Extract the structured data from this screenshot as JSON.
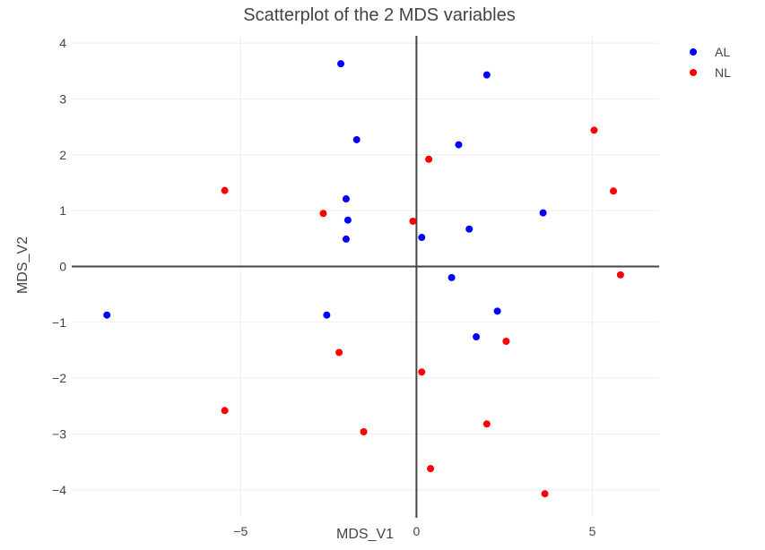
{
  "chart_data": {
    "type": "scatter",
    "title": "Scatterplot of the 2 MDS variables",
    "xlabel": "MDS_V1",
    "ylabel": "MDS_V2",
    "xlim": [
      -9.8,
      6.9
    ],
    "ylim": [
      -4.5,
      4.13
    ],
    "xticks": [
      -5,
      0,
      5
    ],
    "yticks": [
      -4,
      -3,
      -2,
      -1,
      0,
      1,
      2,
      3,
      4
    ],
    "grid": true,
    "zero_lines": true,
    "legend_position": "top-right",
    "series": [
      {
        "name": "AL",
        "color": "#0000ff",
        "points": [
          [
            -8.8,
            -0.87
          ],
          [
            -2.15,
            3.63
          ],
          [
            2.0,
            3.43
          ],
          [
            -1.7,
            2.27
          ],
          [
            1.2,
            2.18
          ],
          [
            -2.0,
            1.21
          ],
          [
            -1.95,
            0.83
          ],
          [
            -2.0,
            0.49
          ],
          [
            3.6,
            0.96
          ],
          [
            1.5,
            0.67
          ],
          [
            0.15,
            0.52
          ],
          [
            1.0,
            -0.2
          ],
          [
            -2.55,
            -0.87
          ],
          [
            2.3,
            -0.8
          ],
          [
            1.7,
            -1.26
          ]
        ]
      },
      {
        "name": "NL",
        "color": "#ff0000",
        "points": [
          [
            -5.45,
            1.36
          ],
          [
            -2.65,
            0.95
          ],
          [
            -0.1,
            0.81
          ],
          [
            0.35,
            1.92
          ],
          [
            5.05,
            2.44
          ],
          [
            5.6,
            1.35
          ],
          [
            5.8,
            -0.15
          ],
          [
            -2.2,
            -1.54
          ],
          [
            0.15,
            -1.89
          ],
          [
            2.55,
            -1.34
          ],
          [
            -5.45,
            -2.58
          ],
          [
            -1.5,
            -2.96
          ],
          [
            2.0,
            -2.82
          ],
          [
            0.4,
            -3.62
          ],
          [
            3.65,
            -4.07
          ]
        ]
      }
    ]
  }
}
